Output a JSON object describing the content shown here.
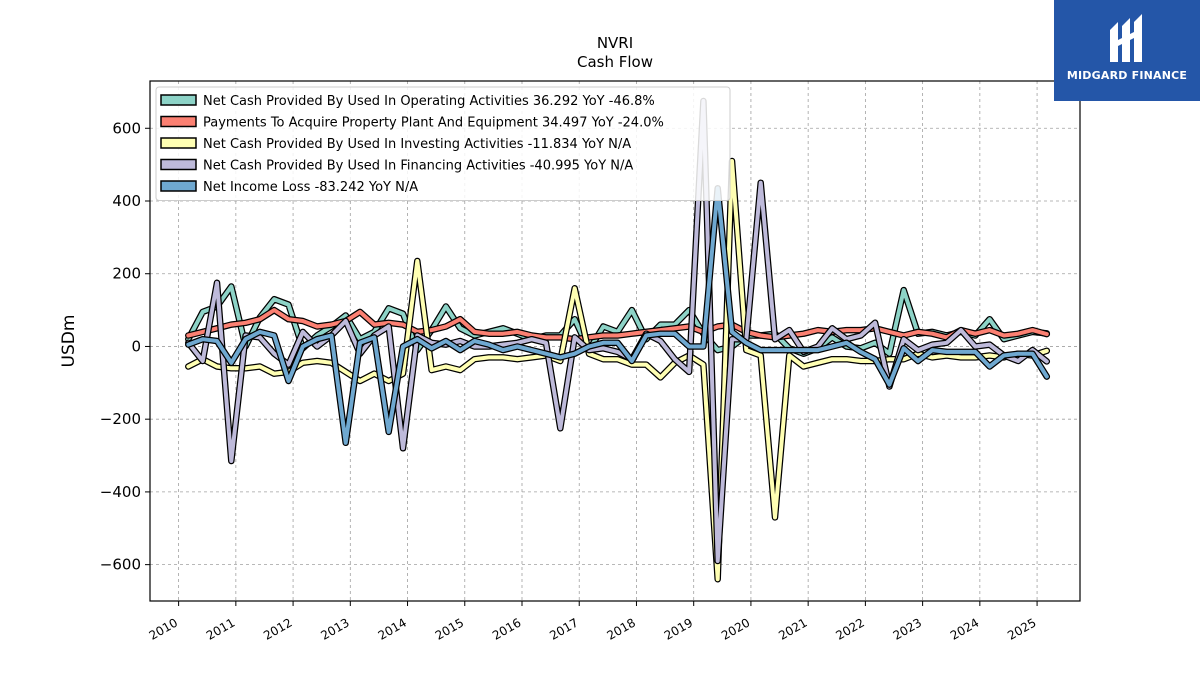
{
  "title": {
    "line1": "NVRI",
    "line2": "Cash Flow"
  },
  "logo": {
    "text": "MIDGARD FINANCE",
    "bg": "#2456a8"
  },
  "chart_data": {
    "type": "line",
    "ylabel": "USDm",
    "ylim": [
      -700,
      730
    ],
    "xlim": [
      2009.5,
      2025.75
    ],
    "yticks": [
      -600,
      -400,
      -200,
      0,
      200,
      400,
      600
    ],
    "ytick_labels": [
      "−600",
      "−400",
      "−200",
      "0",
      "200",
      "400",
      "600"
    ],
    "xticks": [
      2010,
      2011,
      2012,
      2013,
      2014,
      2015,
      2016,
      2017,
      2018,
      2019,
      2020,
      2021,
      2022,
      2023,
      2024,
      2025
    ],
    "xtick_labels": [
      "2010",
      "2011",
      "2012",
      "2013",
      "2014",
      "2015",
      "2016",
      "2017",
      "2018",
      "2019",
      "2020",
      "2021",
      "2022",
      "2023",
      "2024",
      "2025"
    ],
    "grid": true,
    "legend_position": "top-left",
    "x": [
      2010.17,
      2010.42,
      2010.67,
      2010.92,
      2011.17,
      2011.42,
      2011.67,
      2011.92,
      2012.17,
      2012.42,
      2012.67,
      2012.92,
      2013.17,
      2013.42,
      2013.67,
      2013.92,
      2014.17,
      2014.42,
      2014.67,
      2014.92,
      2015.17,
      2015.42,
      2015.67,
      2015.92,
      2016.17,
      2016.42,
      2016.67,
      2016.92,
      2017.17,
      2017.42,
      2017.67,
      2017.92,
      2018.17,
      2018.42,
      2018.67,
      2018.92,
      2019.17,
      2019.42,
      2019.67,
      2019.92,
      2020.17,
      2020.42,
      2020.67,
      2020.92,
      2021.17,
      2021.42,
      2021.67,
      2021.92,
      2022.17,
      2022.42,
      2022.67,
      2022.92,
      2023.17,
      2023.42,
      2023.67,
      2023.92,
      2024.17,
      2024.42,
      2024.67,
      2024.92,
      2025.17
    ],
    "series": [
      {
        "name": "Net Cash Provided By Used In Operating Activities",
        "legend": "Net Cash Provided By Used In Operating Activities  36.292 YoY -46.8%",
        "color": "#8dd3c7",
        "values": [
          20,
          95,
          110,
          165,
          0,
          80,
          130,
          115,
          -5,
          30,
          55,
          85,
          20,
          40,
          105,
          90,
          -10,
          45,
          110,
          50,
          30,
          40,
          50,
          35,
          20,
          30,
          30,
          75,
          -10,
          55,
          40,
          100,
          20,
          60,
          60,
          100,
          35,
          -10,
          0,
          30,
          30,
          35,
          -5,
          -20,
          -5,
          25,
          0,
          -5,
          10,
          -20,
          155,
          35,
          40,
          30,
          40,
          30,
          75,
          20,
          30,
          40,
          36
        ]
      },
      {
        "name": "Payments To Acquire Property Plant And Equipment",
        "legend": "Payments To Acquire Property Plant And Equipment  34.497 YoY -24.0%",
        "color": "#fb8072",
        "values": [
          30,
          40,
          50,
          60,
          65,
          75,
          100,
          75,
          70,
          55,
          60,
          70,
          95,
          60,
          65,
          60,
          40,
          45,
          55,
          75,
          40,
          35,
          35,
          40,
          30,
          25,
          25,
          20,
          25,
          30,
          30,
          35,
          40,
          45,
          50,
          55,
          40,
          55,
          60,
          40,
          30,
          25,
          30,
          35,
          45,
          40,
          45,
          45,
          50,
          40,
          30,
          40,
          35,
          25,
          45,
          35,
          45,
          30,
          35,
          45,
          34
        ]
      },
      {
        "name": "Net Cash Provided By Used In Investing Activities",
        "legend": "Net Cash Provided By Used In Investing Activities  -11.834 YoY N/A",
        "color": "#ffffb3",
        "values": [
          -55,
          -35,
          -55,
          -60,
          -60,
          -55,
          -75,
          -70,
          -45,
          -40,
          -45,
          -70,
          -95,
          -75,
          -95,
          -75,
          235,
          -65,
          -55,
          -65,
          -35,
          -30,
          -30,
          -35,
          -30,
          -25,
          -40,
          160,
          -20,
          -35,
          -35,
          -50,
          -50,
          -85,
          -45,
          -25,
          -50,
          -640,
          510,
          -10,
          -25,
          -470,
          -25,
          -55,
          -45,
          -35,
          -35,
          -40,
          -40,
          -35,
          -35,
          -20,
          -30,
          -25,
          -30,
          -30,
          -25,
          -30,
          -20,
          -25,
          -12
        ]
      },
      {
        "name": "Net Cash Provided By Used In Financing Activities",
        "legend": "Net Cash Provided By Used In Financing Activities  -40.995 YoY N/A",
        "color": "#bebada",
        "values": [
          10,
          -40,
          175,
          -315,
          30,
          25,
          -20,
          -50,
          40,
          0,
          30,
          70,
          -20,
          30,
          55,
          -280,
          30,
          10,
          5,
          15,
          0,
          0,
          5,
          10,
          20,
          10,
          -225,
          25,
          -10,
          -5,
          -15,
          -35,
          35,
          15,
          -35,
          -70,
          675,
          -590,
          20,
          20,
          450,
          20,
          45,
          -15,
          0,
          50,
          20,
          30,
          65,
          -110,
          20,
          -10,
          5,
          10,
          45,
          0,
          5,
          -25,
          -40,
          -10,
          -41
        ]
      },
      {
        "name": "Net Income Loss",
        "legend": "Net Income Loss  -83.242 YoY N/A",
        "color": "#6fa8d0",
        "values": [
          5,
          20,
          15,
          -45,
          20,
          40,
          30,
          -95,
          0,
          20,
          30,
          -265,
          10,
          25,
          -235,
          0,
          20,
          -5,
          15,
          -10,
          15,
          5,
          -10,
          0,
          -10,
          -20,
          -30,
          -20,
          0,
          10,
          10,
          -40,
          30,
          35,
          35,
          0,
          0,
          435,
          40,
          10,
          -10,
          -10,
          -10,
          -10,
          -10,
          0,
          10,
          -15,
          -35,
          -105,
          -5,
          -40,
          -10,
          -15,
          -15,
          -15,
          -55,
          -25,
          -20,
          -20,
          -83
        ]
      }
    ]
  }
}
